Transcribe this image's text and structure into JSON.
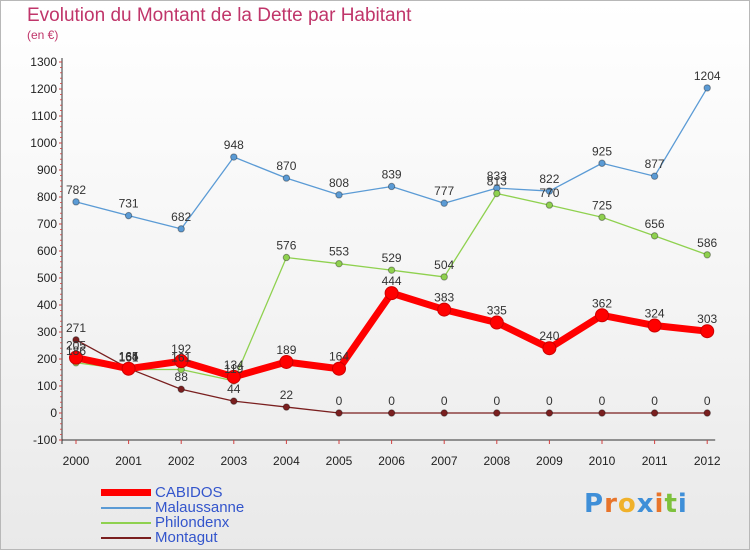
{
  "header": {
    "title": "Evolution du Montant de la Dette par Habitant",
    "unit": "(en €)"
  },
  "brand": {
    "letters": [
      "P",
      "r",
      "o",
      "x",
      "i",
      "t",
      "i"
    ],
    "colors": [
      "#3f8fd8",
      "#e8742a",
      "#f0b12a",
      "#3f8fd8",
      "#e8742a",
      "#7dc13c",
      "#3f8fd8"
    ]
  },
  "chart_data": {
    "type": "line",
    "x": [
      "2000",
      "2001",
      "2002",
      "2003",
      "2004",
      "2005",
      "2006",
      "2007",
      "2008",
      "2009",
      "2010",
      "2011",
      "2012"
    ],
    "ylim": [
      -100,
      1300
    ],
    "yticks": [
      -100,
      0,
      100,
      200,
      300,
      400,
      500,
      600,
      700,
      800,
      900,
      1000,
      1100,
      1200,
      1300
    ],
    "grid": false,
    "legend_position": "bottom-left",
    "series": [
      {
        "name": "Malaussanne",
        "color": "#5b9bd5",
        "values": [
          782,
          731,
          682,
          948,
          870,
          808,
          839,
          777,
          833,
          822,
          925,
          877,
          1204
        ]
      },
      {
        "name": "Philondenx",
        "color": "#8fd14f",
        "values": [
          186,
          161,
          161,
          119,
          576,
          553,
          529,
          504,
          813,
          770,
          725,
          656,
          586
        ]
      },
      {
        "name": "Montagut",
        "color": "#7a1f1f",
        "values": [
          271,
          165,
          88,
          44,
          22,
          0,
          0,
          0,
          0,
          0,
          0,
          0,
          0
        ]
      },
      {
        "name": "CABIDOS",
        "color": "#ff0000",
        "values": [
          205,
          164,
          192,
          134,
          189,
          164,
          444,
          383,
          335,
          240,
          362,
          324,
          303
        ]
      }
    ]
  }
}
